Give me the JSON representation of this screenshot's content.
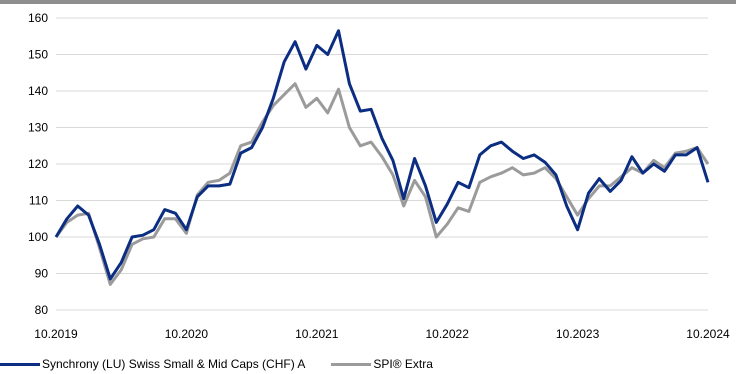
{
  "chart_data": {
    "type": "line",
    "title": "",
    "xlabel": "",
    "ylabel": "",
    "ylim": [
      80,
      160
    ],
    "yticks": [
      80,
      90,
      100,
      110,
      120,
      130,
      140,
      150,
      160
    ],
    "xlim": [
      "2019-10",
      "2024-10"
    ],
    "xtick_labels": [
      "10.2019",
      "10.2020",
      "10.2021",
      "10.2022",
      "10.2023",
      "10.2024"
    ],
    "grid": "horizontal",
    "legend_position": "bottom-left",
    "x": [
      "2019-10",
      "2019-11",
      "2019-12",
      "2020-01",
      "2020-02",
      "2020-03",
      "2020-04",
      "2020-05",
      "2020-06",
      "2020-07",
      "2020-08",
      "2020-09",
      "2020-10",
      "2020-11",
      "2020-12",
      "2021-01",
      "2021-02",
      "2021-03",
      "2021-04",
      "2021-05",
      "2021-06",
      "2021-07",
      "2021-08",
      "2021-09",
      "2021-10",
      "2021-11",
      "2021-12",
      "2022-01",
      "2022-02",
      "2022-03",
      "2022-04",
      "2022-05",
      "2022-06",
      "2022-07",
      "2022-08",
      "2022-09",
      "2022-10",
      "2022-11",
      "2022-12",
      "2023-01",
      "2023-02",
      "2023-03",
      "2023-04",
      "2023-05",
      "2023-06",
      "2023-07",
      "2023-08",
      "2023-09",
      "2023-10",
      "2023-11",
      "2023-12",
      "2024-01",
      "2024-02",
      "2024-03",
      "2024-04",
      "2024-05",
      "2024-06",
      "2024-07",
      "2024-08",
      "2024-09",
      "2024-10"
    ],
    "series": [
      {
        "name": "Synchrony (LU) Swiss Small & Mid Caps (CHF) A",
        "color": "#0b2d82",
        "values": [
          100,
          105,
          108.5,
          106,
          98,
          88.5,
          93,
          100,
          100.5,
          102,
          107.5,
          106.5,
          102,
          111,
          114,
          114,
          114.5,
          123,
          124.5,
          130,
          138,
          148,
          153.5,
          146,
          152.5,
          150,
          156.5,
          142,
          134.5,
          135,
          127,
          121,
          110.5,
          121.5,
          114,
          104,
          109,
          115,
          113.5,
          122.5,
          125,
          126,
          123.5,
          121.5,
          122.5,
          120.5,
          117,
          108.5,
          102,
          112,
          116,
          112.5,
          115.5,
          122,
          117.5,
          120,
          118,
          122.5,
          122.5,
          124.5,
          115
        ]
      },
      {
        "name": "SPI® Extra",
        "color": "#9b9b9b",
        "values": [
          100,
          104,
          106,
          106.5,
          97,
          87,
          91,
          98,
          99.5,
          100,
          105,
          105,
          101,
          111.5,
          115,
          115.5,
          117.5,
          125,
          126,
          131.5,
          136,
          139,
          142,
          135.5,
          138,
          134,
          140.5,
          130,
          125,
          126,
          122,
          117,
          108.5,
          115.5,
          111,
          100,
          103.5,
          108,
          107,
          115,
          116.5,
          117.5,
          119,
          117,
          117.5,
          119,
          116,
          111,
          106,
          110.5,
          114,
          114,
          116.5,
          119,
          117.5,
          121,
          119,
          123,
          123.5,
          124.5,
          120
        ]
      }
    ]
  }
}
